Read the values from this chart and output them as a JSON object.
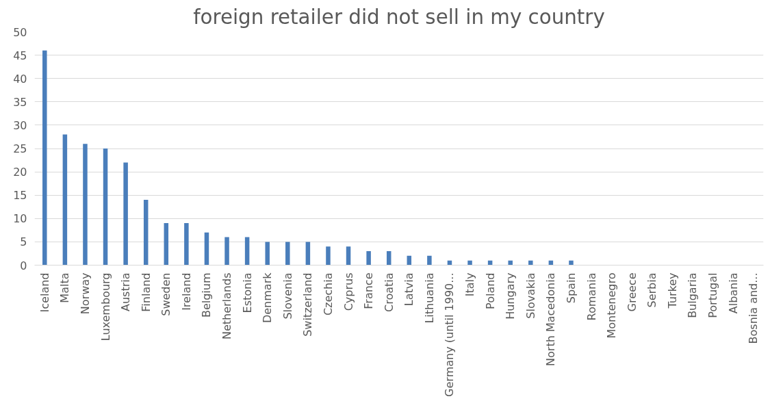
{
  "chart_data": {
    "type": "bar",
    "title": "foreign retailer did not sell in my country",
    "categories": [
      "Iceland",
      "Malta",
      "Norway",
      "Luxembourg",
      "Austria",
      "Finland",
      "Sweden",
      "Ireland",
      "Belgium",
      "Netherlands",
      "Estonia",
      "Denmark",
      "Slovenia",
      "Switzerland",
      "Czechia",
      "Cyprus",
      "France",
      "Croatia",
      "Latvia",
      "Lithuania",
      "Germany (until 1990...",
      "Italy",
      "Poland",
      "Hungary",
      "Slovakia",
      "North Macedonia",
      "Spain",
      "Romania",
      "Montenegro",
      "Greece",
      "Serbia",
      "Turkey",
      "Bulgaria",
      "Portugal",
      "Albania",
      "Bosnia and..."
    ],
    "values": [
      46,
      28,
      26,
      25,
      22,
      14,
      9,
      9,
      7,
      6,
      6,
      5,
      5,
      5,
      4,
      4,
      3,
      3,
      2,
      2,
      1,
      1,
      1,
      1,
      1,
      1,
      1,
      0,
      0,
      0,
      0,
      0,
      0,
      0,
      0,
      0
    ],
    "color": "#4a7ebb",
    "ylim": [
      0,
      50
    ],
    "yticks": [
      0,
      5,
      10,
      15,
      20,
      25,
      30,
      35,
      40,
      45,
      50
    ],
    "grid": "y"
  }
}
